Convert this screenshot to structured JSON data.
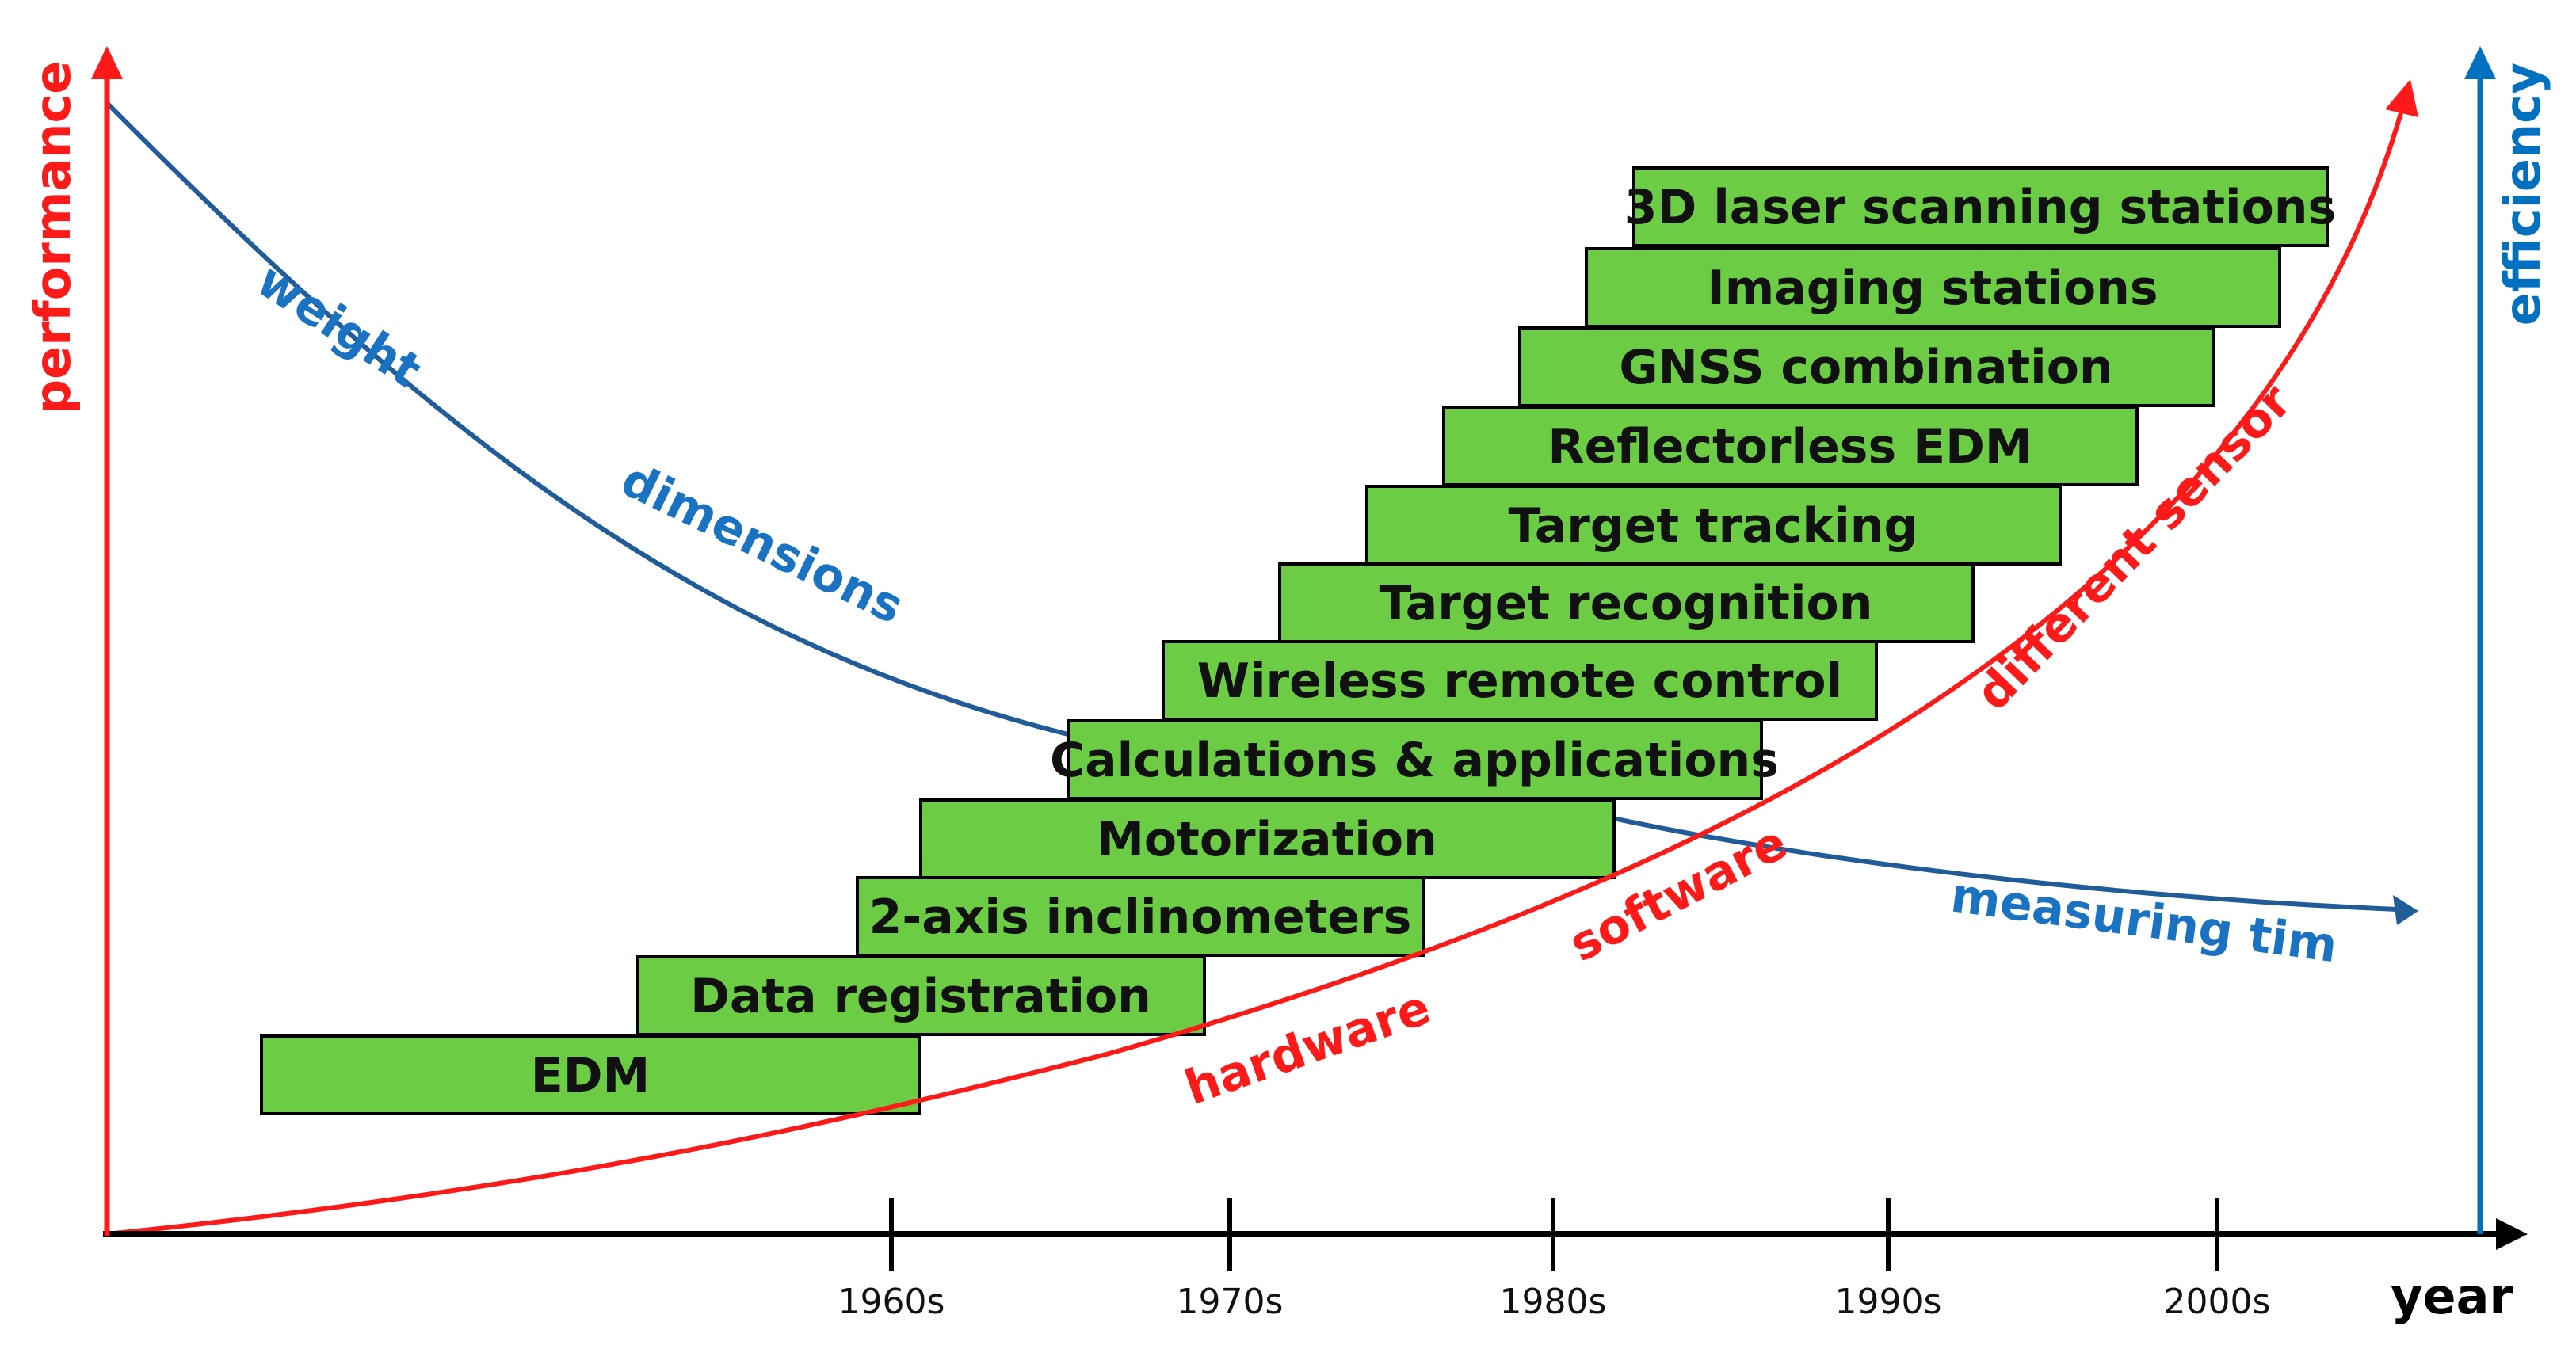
{
  "axes": {
    "left_title": "performance",
    "right_title": "efficiency",
    "x_title": "year",
    "x_ticks": [
      "1960s",
      "1970s",
      "1980s",
      "1990s",
      "2000s"
    ],
    "colors": {
      "performance": "#ff1a1a",
      "efficiency": "#0070c0",
      "x_axis": "#000000"
    }
  },
  "performance_curve": {
    "color": "#ff1a1a",
    "labels": [
      "hardware",
      "software",
      "different sensors"
    ]
  },
  "efficiency_curve": {
    "color": "#1f5c99",
    "label_color": "#1a73c2",
    "labels": [
      "weight",
      "dimensions",
      "measuring time"
    ]
  },
  "innovations": {
    "fill": "#6ccd44",
    "items": [
      "EDM",
      "Data registration",
      "2-axis inclinometers",
      "Motorization",
      "Calculations & applications",
      "Wireless remote control",
      "Target recognition",
      "Target tracking",
      "Reflectorless EDM",
      "GNSS combination",
      "Imaging stations",
      "3D laser scanning stations"
    ]
  }
}
